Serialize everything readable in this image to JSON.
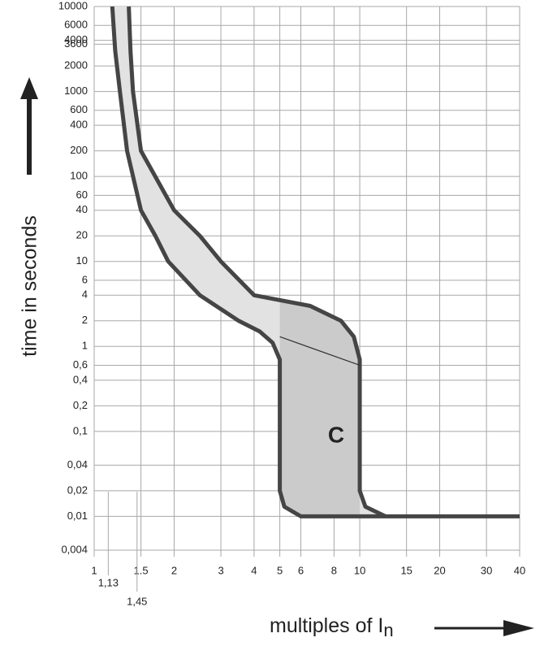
{
  "chart_data": {
    "type": "trip-band",
    "y_label": "time in seconds",
    "x_label": "multiples of I",
    "x_label_sub": "n",
    "annotation": "C",
    "log_x": true,
    "log_y": true,
    "grid": true,
    "xlim": [
      1,
      40
    ],
    "ylim": [
      0.004,
      10000
    ],
    "xticks": [
      1,
      1.5,
      2,
      3,
      4,
      5,
      6,
      8,
      10,
      15,
      20,
      30,
      40
    ],
    "yticks": [
      10000,
      6000,
      4000,
      3600,
      2000,
      1000,
      600,
      400,
      200,
      100,
      60,
      40,
      20,
      10,
      6,
      4,
      2,
      1,
      {
        "value": 0.6,
        "label": "0,6"
      },
      {
        "value": 0.4,
        "label": "0,4"
      },
      {
        "value": 0.2,
        "label": "0,2"
      },
      {
        "value": 0.1,
        "label": "0,1"
      },
      {
        "value": 0.04,
        "label": "0,04"
      },
      {
        "value": 0.02,
        "label": "0,02"
      },
      {
        "value": 0.01,
        "label": "0,01"
      },
      {
        "value": 0.004,
        "label": "0,004"
      }
    ],
    "markers": [
      {
        "value": 1.13,
        "label": "1,13"
      },
      {
        "value": 1.45,
        "label": "1,45"
      }
    ],
    "band_color": "#e2e2e2",
    "instant_color": "#c6c6c6",
    "series": [
      {
        "color": "#454545",
        "x": [
          1.17,
          1.2,
          1.25,
          1.33,
          1.5,
          1.7,
          1.9,
          2.5,
          3.5,
          4.2,
          4.7,
          5,
          5,
          5.2,
          6,
          40
        ],
        "values": [
          10000,
          3000,
          1000,
          200,
          40,
          20,
          10,
          4,
          2,
          1.5,
          1.1,
          0.7,
          0.02,
          0.013,
          0.01,
          0.01
        ]
      },
      {
        "color": "#454545",
        "x": [
          1.35,
          1.37,
          1.4,
          1.5,
          2,
          2.5,
          3,
          4,
          6.5,
          8.5,
          9.5,
          10,
          10,
          10.5,
          12.5
        ],
        "values": [
          10000,
          3000,
          1000,
          200,
          40,
          20,
          10,
          4,
          3,
          2,
          1.3,
          0.7,
          0.02,
          0.013,
          0.01
        ]
      },
      {
        "color": "#333333",
        "x": [
          5,
          10
        ],
        "values": [
          1.3,
          0.6
        ]
      }
    ]
  }
}
